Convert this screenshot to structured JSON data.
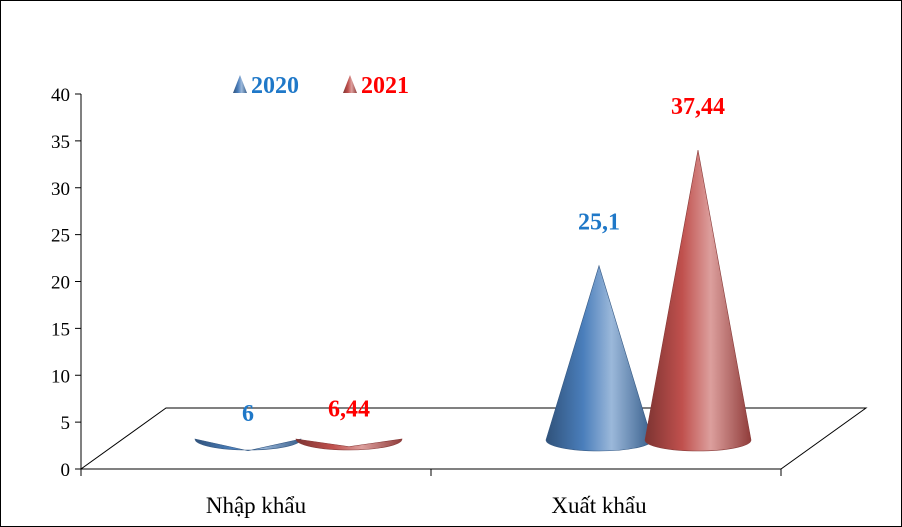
{
  "chart_data": {
    "type": "bar",
    "style": "3d-cone",
    "categories": [
      "Nhập khẩu",
      "Xuất khẩu"
    ],
    "series": [
      {
        "name": "2020",
        "values": [
          6,
          25.1
        ],
        "labels": [
          "6",
          "25,1"
        ],
        "color": "#4a7ebb",
        "label_color": "#1f78c8"
      },
      {
        "name": "2021",
        "values": [
          6.44,
          37.44
        ],
        "labels": [
          "6,44",
          "37,44"
        ],
        "color": "#c0504d",
        "label_color": "#ff0000"
      }
    ],
    "ylim": [
      0,
      40
    ],
    "yticks": [
      "0",
      "5",
      "10",
      "15",
      "20",
      "25",
      "30",
      "35",
      "40"
    ],
    "legend_position": "top-left",
    "grid": false
  }
}
